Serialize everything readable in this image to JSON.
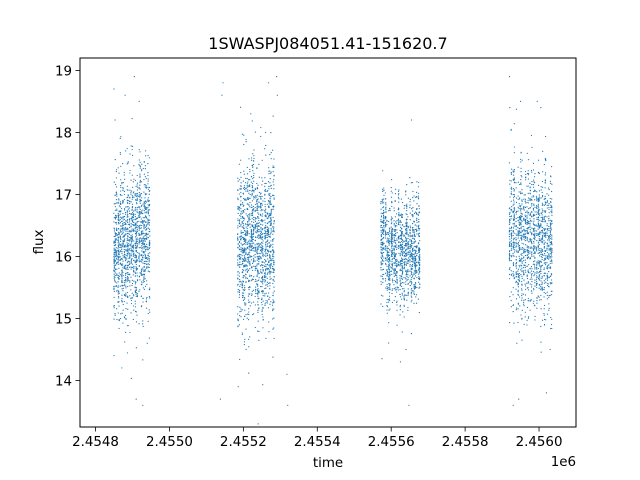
{
  "chart_data": {
    "type": "scatter",
    "title": "1SWASPJ084051.41-151620.7",
    "xlabel": "time",
    "ylabel": "flux",
    "x_offset_label": "1e6",
    "xlim": [
      2454758,
      2456100
    ],
    "ylim": [
      13.25,
      19.2
    ],
    "x_ticks": [
      {
        "value": 2454800,
        "label": "2.4548"
      },
      {
        "value": 2455000,
        "label": "2.4550"
      },
      {
        "value": 2455200,
        "label": "2.4552"
      },
      {
        "value": 2455400,
        "label": "2.4554"
      },
      {
        "value": 2455600,
        "label": "2.4556"
      },
      {
        "value": 2455800,
        "label": "2.4558"
      },
      {
        "value": 2456000,
        "label": "2.4560"
      }
    ],
    "y_ticks": [
      {
        "value": 14,
        "label": "14"
      },
      {
        "value": 15,
        "label": "15"
      },
      {
        "value": 16,
        "label": "16"
      },
      {
        "value": 17,
        "label": "17"
      },
      {
        "value": 18,
        "label": "18"
      },
      {
        "value": 19,
        "label": "19"
      }
    ],
    "grid": false,
    "marker_color": "#1f77b4",
    "clusters": [
      {
        "x_start": 2454849,
        "x_end": 2454948,
        "flux_mean": 16.2,
        "flux_spread": 0.55,
        "n_points": 1400
      },
      {
        "x_start": 2455185,
        "x_end": 2455285,
        "flux_mean": 16.25,
        "flux_spread": 0.6,
        "n_points": 1400
      },
      {
        "x_start": 2455572,
        "x_end": 2455680,
        "flux_mean": 16.15,
        "flux_spread": 0.4,
        "n_points": 1300
      },
      {
        "x_start": 2455920,
        "x_end": 2456038,
        "flux_mean": 16.3,
        "flux_spread": 0.55,
        "n_points": 1400
      }
    ],
    "outliers": [
      {
        "x": 2454850,
        "y": 18.7
      },
      {
        "x": 2454850,
        "y": 14.4
      },
      {
        "x": 2454853,
        "y": 18.2
      },
      {
        "x": 2454880,
        "y": 18.6
      },
      {
        "x": 2454905,
        "y": 18.9
      },
      {
        "x": 2454910,
        "y": 13.7
      },
      {
        "x": 2454918,
        "y": 18.5
      },
      {
        "x": 2454928,
        "y": 13.6
      },
      {
        "x": 2454940,
        "y": 14.6
      },
      {
        "x": 2455142,
        "y": 18.6
      },
      {
        "x": 2455145,
        "y": 18.8
      },
      {
        "x": 2455138,
        "y": 13.7
      },
      {
        "x": 2455186,
        "y": 13.9
      },
      {
        "x": 2455220,
        "y": 18.3
      },
      {
        "x": 2455260,
        "y": 18.0
      },
      {
        "x": 2455268,
        "y": 18.8
      },
      {
        "x": 2455290,
        "y": 18.9
      },
      {
        "x": 2455292,
        "y": 18.6
      },
      {
        "x": 2455318,
        "y": 14.1
      },
      {
        "x": 2455320,
        "y": 13.6
      },
      {
        "x": 2455240,
        "y": 13.3
      },
      {
        "x": 2455575,
        "y": 14.35
      },
      {
        "x": 2455625,
        "y": 14.3
      },
      {
        "x": 2455640,
        "y": 14.5
      },
      {
        "x": 2455648,
        "y": 13.6
      },
      {
        "x": 2455655,
        "y": 18.2
      },
      {
        "x": 2455920,
        "y": 18.9
      },
      {
        "x": 2455921,
        "y": 18.4
      },
      {
        "x": 2455945,
        "y": 13.7
      },
      {
        "x": 2455950,
        "y": 18.5
      },
      {
        "x": 2455995,
        "y": 18.5
      },
      {
        "x": 2456005,
        "y": 18.4
      },
      {
        "x": 2456020,
        "y": 13.8
      },
      {
        "x": 2455940,
        "y": 14.6
      },
      {
        "x": 2456030,
        "y": 14.5
      },
      {
        "x": 2455930,
        "y": 13.6
      }
    ]
  }
}
